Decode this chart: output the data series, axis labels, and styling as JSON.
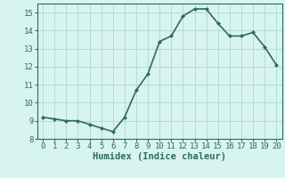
{
  "x": [
    0,
    1,
    2,
    3,
    4,
    5,
    6,
    7,
    8,
    9,
    10,
    11,
    12,
    13,
    14,
    15,
    16,
    17,
    18,
    19,
    20
  ],
  "y": [
    9.2,
    9.1,
    9.0,
    9.0,
    8.8,
    8.6,
    8.4,
    9.2,
    10.7,
    11.6,
    13.4,
    13.7,
    14.8,
    15.2,
    15.2,
    14.4,
    13.7,
    13.7,
    13.9,
    13.1,
    12.1
  ],
  "xlabel": "Humidex (Indice chaleur)",
  "ylim": [
    8,
    15.5
  ],
  "xlim": [
    -0.5,
    20.5
  ],
  "yticks": [
    8,
    9,
    10,
    11,
    12,
    13,
    14,
    15
  ],
  "xticks": [
    0,
    1,
    2,
    3,
    4,
    5,
    6,
    7,
    8,
    9,
    10,
    11,
    12,
    13,
    14,
    15,
    16,
    17,
    18,
    19,
    20
  ],
  "line_color": "#2d6b5e",
  "marker": "D",
  "marker_size": 2.0,
  "bg_color": "#d8f4ee",
  "grid_color": "#b0ddd4",
  "xlabel_fontsize": 7.5,
  "tick_fontsize": 6.5,
  "line_width": 1.2,
  "font_family": "monospace"
}
